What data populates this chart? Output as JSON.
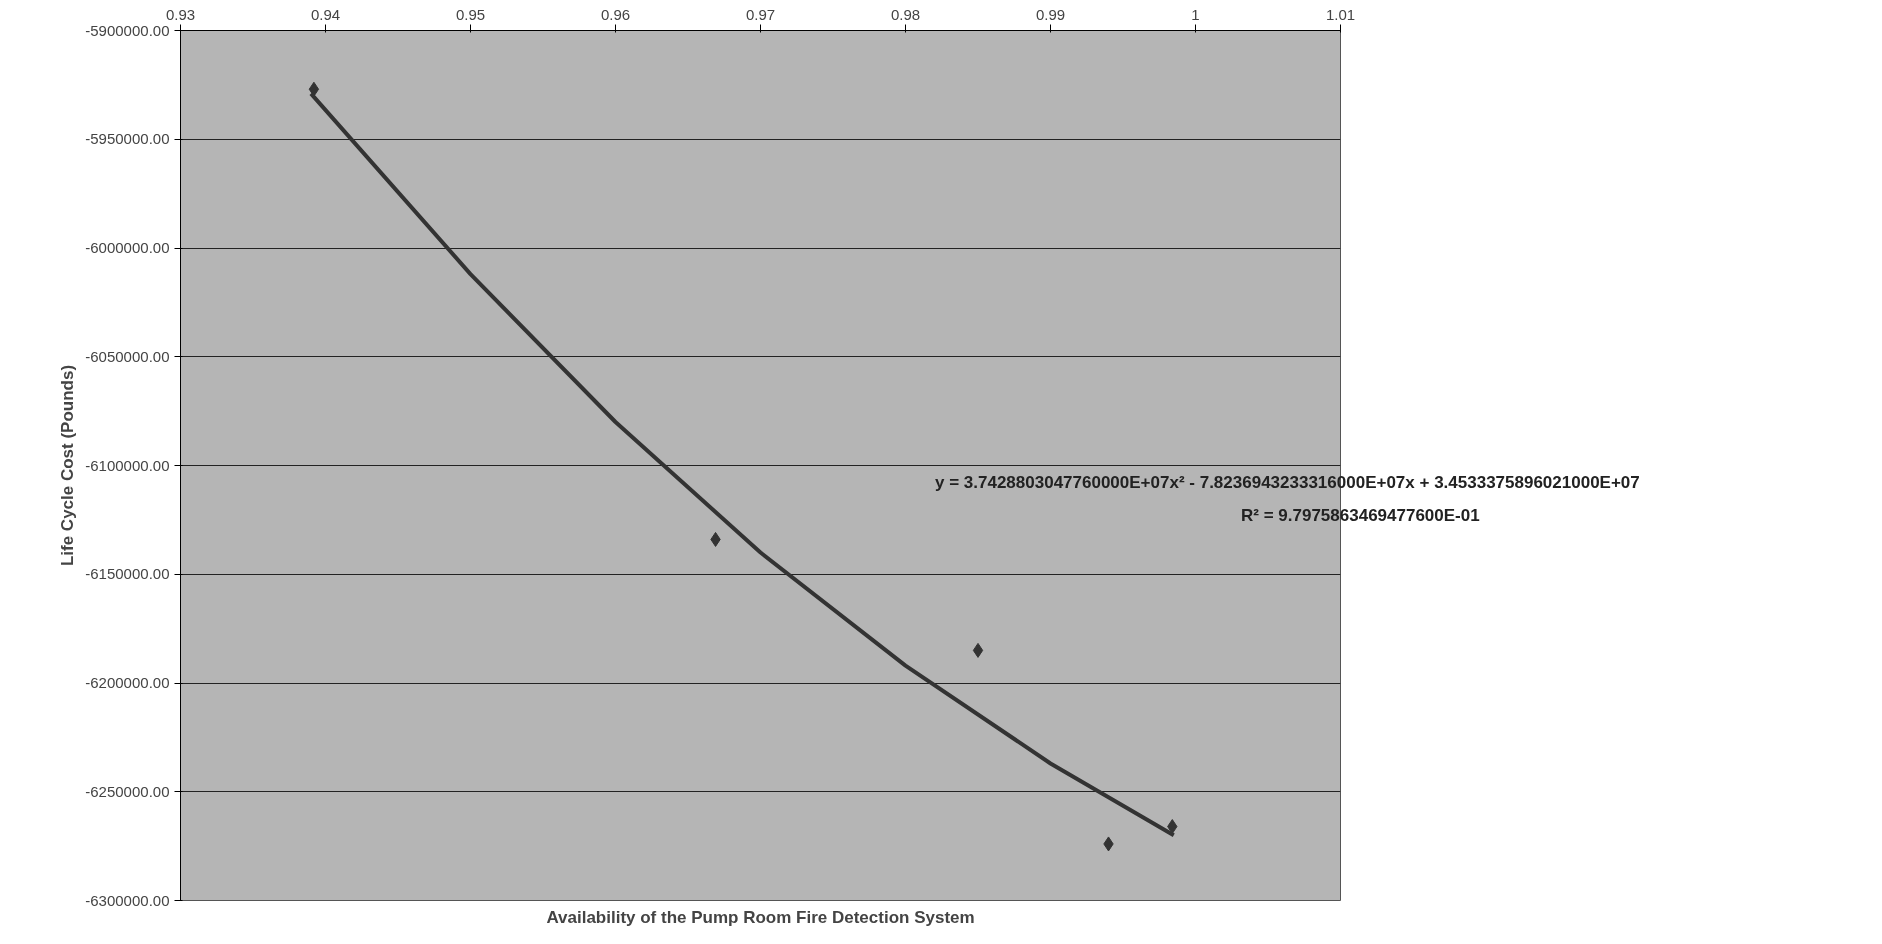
{
  "chart_data": {
    "type": "scatter",
    "xlabel": "Availability of the Pump Room Fire Detection System",
    "ylabel": "Life Cycle Cost (Pounds)",
    "x": [
      0.9392,
      0.9669,
      0.985,
      0.994,
      0.9984
    ],
    "series": [
      {
        "color": "#333333",
        "marker": "diamond",
        "values": [
          -5927000,
          -6134000,
          -6185000,
          -6274000,
          -6266000
        ]
      },
      {
        "type": "line",
        "color": "#333333",
        "line_style": "solid",
        "x": [
          0.939,
          0.95,
          0.96,
          0.97,
          0.98,
          0.99,
          0.9985
        ],
        "values": [
          -5929000,
          -6012000,
          -6080000,
          -6140000,
          -6192000,
          -6237000,
          -6270000
        ]
      }
    ],
    "annotations": [
      "y = 3.7428803047760000E+07x² - 7.8236943233316000E+07x + 3.4533375896021000E+07",
      "R² = 9.7975863469477600E-01"
    ],
    "xlim": [
      0.93,
      1.01
    ],
    "xticks": [
      0.93,
      0.94,
      0.95,
      0.96,
      0.97,
      0.98,
      0.99,
      1,
      1.01
    ],
    "ylim": [
      -6300000,
      -5900000
    ],
    "yticks": [
      {
        "value": -6300000,
        "label": "-6300000.00"
      },
      {
        "value": -6250000,
        "label": "-6250000.00"
      },
      {
        "value": -6200000,
        "label": "-6200000.00"
      },
      {
        "value": -6150000,
        "label": "-6150000.00"
      },
      {
        "value": -6100000,
        "label": "-6100000.00"
      },
      {
        "value": -6050000,
        "label": "-6050000.00"
      },
      {
        "value": -6000000,
        "label": "-6000000.00"
      },
      {
        "value": -5950000,
        "label": "-5950000.00"
      },
      {
        "value": -5900000,
        "label": "-5900000.00"
      }
    ],
    "grid": "y"
  }
}
